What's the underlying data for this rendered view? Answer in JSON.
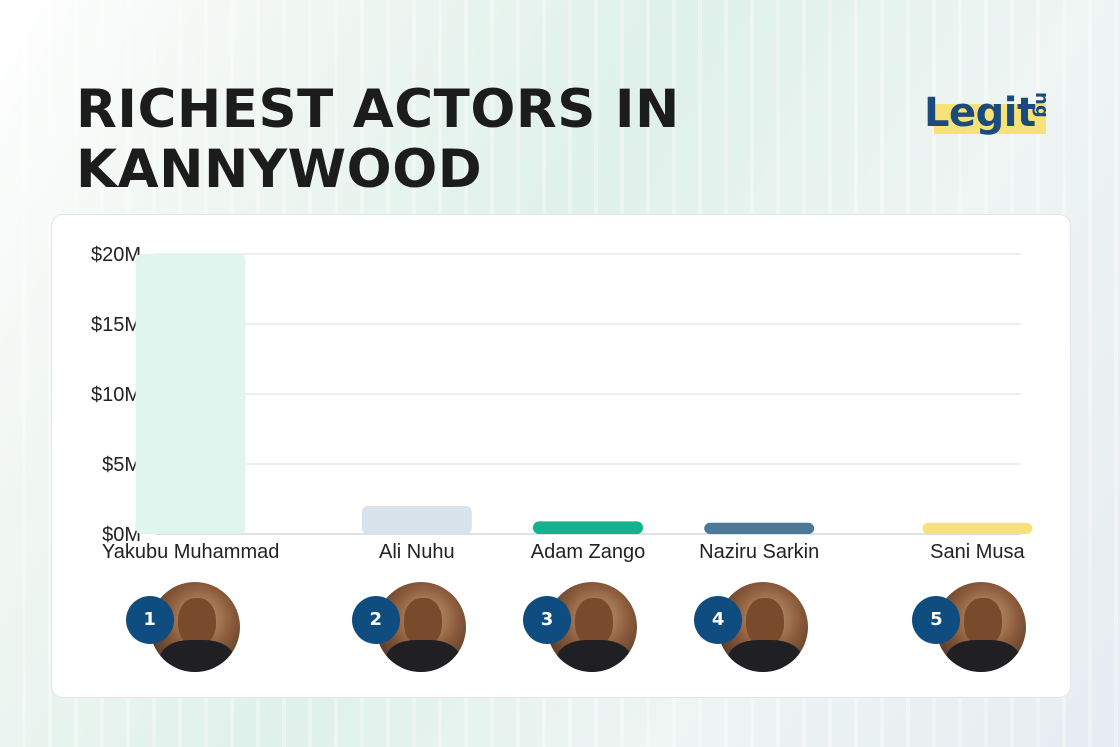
{
  "title": "RICHEST ACTORS IN KANNYWOOD",
  "brand": {
    "main": "Legit",
    "suffix": "ng"
  },
  "colors": {
    "title": "#1c1c1c",
    "brand_text": "#1a4b7a",
    "brand_highlight": "#f7e27a",
    "rank_badge": "#0f4c7f"
  },
  "chart_data": {
    "type": "bar",
    "title": "RICHEST ACTORS IN KANNYWOOD",
    "xlabel": "",
    "ylabel": "",
    "categories": [
      "Yakubu Muhammad",
      "Ali Nuhu",
      "Adam Zango",
      "Naziru Sarkin",
      "Sani Musa"
    ],
    "values": [
      20,
      2,
      0.9,
      0.8,
      0.8
    ],
    "bar_colors": [
      "#dff5ee",
      "#d8e3ec",
      "#14b28e",
      "#4d7898",
      "#f7e27a"
    ],
    "ylim": [
      0,
      20
    ],
    "yticks": [
      0,
      5,
      10,
      15,
      20
    ],
    "ytick_labels": [
      "$0M",
      "$5M",
      "$10M",
      "$15M",
      "$20M"
    ],
    "grid": true,
    "legend": "none"
  },
  "actors": [
    {
      "rank": "1",
      "name": "Yakubu Muhammad",
      "photo_icon": "portrait-photo"
    },
    {
      "rank": "2",
      "name": "Ali Nuhu",
      "photo_icon": "portrait-photo"
    },
    {
      "rank": "3",
      "name": "Adam Zango",
      "photo_icon": "portrait-photo"
    },
    {
      "rank": "4",
      "name": "Naziru Sarkin",
      "photo_icon": "portrait-photo"
    },
    {
      "rank": "5",
      "name": "Sani Musa",
      "photo_icon": "portrait-photo"
    }
  ]
}
